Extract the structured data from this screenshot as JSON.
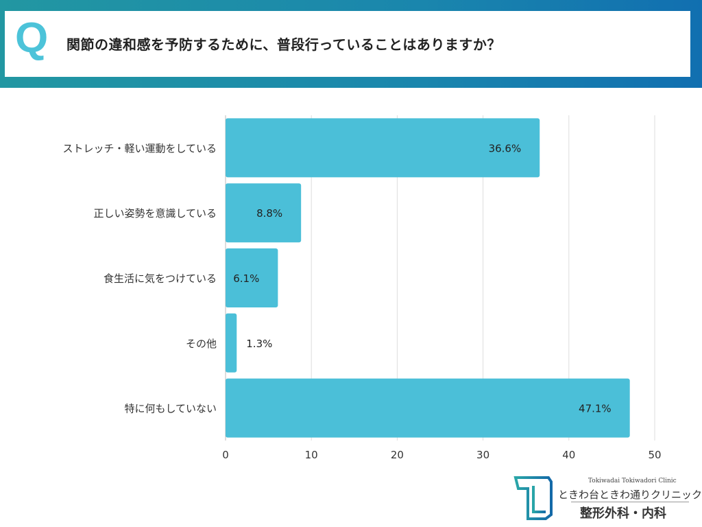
{
  "header": {
    "q_mark": "Q",
    "title": "関節の違和感を予防するために、普段行っていることはありますか？"
  },
  "chart_data": {
    "type": "bar",
    "orientation": "horizontal",
    "categories": [
      "ストレッチ・軽い運動をしている",
      "正しい姿勢を意識している",
      "食生活に気をつけている",
      "その他",
      "特に何もしていない"
    ],
    "values": [
      36.6,
      8.8,
      6.1,
      1.3,
      47.1
    ],
    "data_labels": [
      "36.6%",
      "8.8%",
      "6.1%",
      "1.3%",
      "47.1%"
    ],
    "xlim": [
      0,
      50
    ],
    "xticks": [
      "0",
      "10",
      "20",
      "30",
      "40",
      "50"
    ],
    "grid": true,
    "bar_color": "#4bbfd8"
  },
  "logo": {
    "en": "Tokiwadai Tokiwadori Clinic",
    "jp": "ときわ台ときわ通りクリニック",
    "sub": "整形外科・内科",
    "color": "#1a8aa8"
  }
}
